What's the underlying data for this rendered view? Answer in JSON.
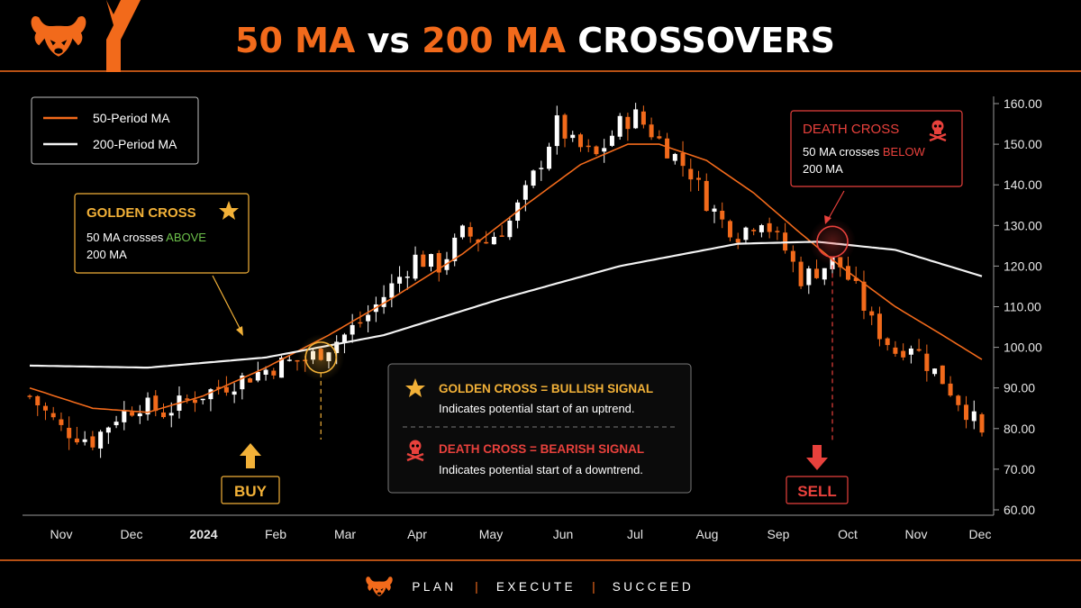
{
  "header": {
    "title_parts": [
      {
        "text": "50 MA",
        "color": "#f26a1b"
      },
      {
        "text": " vs ",
        "color": "#ffffff"
      },
      {
        "text": "200 MA",
        "color": "#f26a1b"
      },
      {
        "text": " CROSSOVERS",
        "color": "#ffffff"
      }
    ],
    "logo_icon": "bull-head-icon"
  },
  "footer": {
    "logo_icon": "bull-head-icon",
    "words": [
      "PLAN",
      "EXECUTE",
      "SUCCEED"
    ],
    "separator": "|"
  },
  "colors": {
    "accent": "#f26a1b",
    "gold": "#f2b138",
    "bull_candle": "#ffffff",
    "bear_candle": "#f26a1b",
    "death_red": "#e8413c",
    "green_text": "#6cc04a",
    "ma50": "#f26a1b",
    "ma200": "#f2f2f2"
  },
  "chart_data": {
    "type": "candlestick",
    "x_labels": [
      "Nov",
      "Dec",
      "2024",
      "Feb",
      "Mar",
      "Apr",
      "May",
      "Jun",
      "Jul",
      "Aug",
      "Sep",
      "Oct",
      "Nov",
      "Dec"
    ],
    "bold_x_label": "2024",
    "y_ticks": [
      "160.00",
      "150.00",
      "140.00",
      "130.00",
      "120.00",
      "110.00",
      "100.00",
      "90.00",
      "80.00",
      "70.00",
      "60.00"
    ],
    "ylim": [
      60,
      160
    ],
    "close_path": [
      [
        0,
        88
      ],
      [
        4,
        80
      ],
      [
        8,
        77
      ],
      [
        11,
        83
      ],
      [
        14,
        86
      ],
      [
        17,
        84
      ],
      [
        20,
        87
      ],
      [
        24,
        90
      ],
      [
        28,
        93
      ],
      [
        32,
        96
      ],
      [
        35,
        97
      ],
      [
        37,
        99
      ],
      [
        40,
        103
      ],
      [
        43,
        108
      ],
      [
        46,
        115
      ],
      [
        49,
        122
      ],
      [
        52,
        120
      ],
      [
        55,
        128
      ],
      [
        58,
        126
      ],
      [
        61,
        131
      ],
      [
        63,
        138
      ],
      [
        65,
        146
      ],
      [
        67,
        155
      ],
      [
        69,
        150
      ],
      [
        72,
        147
      ],
      [
        75,
        155
      ],
      [
        77,
        157
      ],
      [
        80,
        151
      ],
      [
        82,
        147
      ],
      [
        84,
        143
      ],
      [
        86,
        136
      ],
      [
        88,
        131
      ],
      [
        90,
        128
      ],
      [
        93,
        132
      ],
      [
        96,
        124
      ],
      [
        98,
        117
      ],
      [
        100,
        119
      ],
      [
        102,
        121
      ],
      [
        103,
        120
      ],
      [
        105,
        114
      ],
      [
        107,
        106
      ],
      [
        110,
        99
      ],
      [
        112,
        101
      ],
      [
        114,
        96
      ],
      [
        116,
        92
      ],
      [
        118,
        87
      ],
      [
        120,
        82
      ],
      [
        121,
        78
      ]
    ],
    "candle_count": 122,
    "series": [
      {
        "name": "50-Period MA",
        "points": [
          [
            0,
            90
          ],
          [
            8,
            85
          ],
          [
            15,
            84
          ],
          [
            22,
            88
          ],
          [
            30,
            95
          ],
          [
            38,
            103
          ],
          [
            46,
            112
          ],
          [
            55,
            123
          ],
          [
            63,
            135
          ],
          [
            70,
            145
          ],
          [
            76,
            150
          ],
          [
            80,
            150
          ],
          [
            86,
            146
          ],
          [
            92,
            138
          ],
          [
            98,
            128
          ],
          [
            103,
            120
          ],
          [
            110,
            110
          ],
          [
            116,
            103
          ],
          [
            121,
            97
          ]
        ]
      },
      {
        "name": "200-Period MA",
        "points": [
          [
            0,
            95.5
          ],
          [
            15,
            95
          ],
          [
            30,
            97.5
          ],
          [
            45,
            103
          ],
          [
            60,
            112
          ],
          [
            75,
            120
          ],
          [
            90,
            125.5
          ],
          [
            100,
            126
          ],
          [
            110,
            124
          ],
          [
            121,
            117.5
          ]
        ]
      }
    ],
    "legend": {
      "placement": "top-left"
    },
    "annotations": {
      "golden": {
        "title": "GOLDEN CROSS",
        "line1_prefix": "50 MA crosses ",
        "line1_highlight": "ABOVE",
        "line2": "200 MA",
        "at": [
          37,
          97.5
        ],
        "signal_label": "BUY"
      },
      "death": {
        "title": "DEATH CROSS",
        "line1_prefix": "50 MA crosses ",
        "line1_highlight": "BELOW",
        "line2": "200 MA",
        "at": [
          102,
          126
        ],
        "signal_label": "SELL"
      },
      "info": {
        "golden_title": "GOLDEN CROSS = BULLISH SIGNAL",
        "golden_desc": "Indicates potential start of an uptrend.",
        "death_title": "DEATH CROSS = BEARISH SIGNAL",
        "death_desc": "Indicates potential start of a downtrend."
      }
    }
  }
}
